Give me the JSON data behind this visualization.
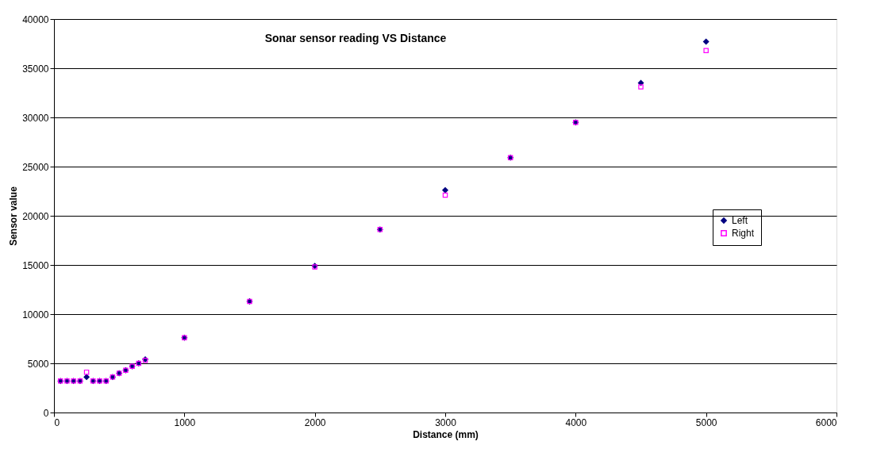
{
  "chart_data": {
    "type": "scatter",
    "title": "Sonar sensor reading VS Distance",
    "xlabel": "Distance (mm)",
    "ylabel": "Sensor value",
    "x": [
      50,
      100,
      150,
      200,
      250,
      300,
      350,
      400,
      450,
      500,
      550,
      600,
      650,
      700,
      1000,
      1500,
      2000,
      2500,
      3000,
      3500,
      4000,
      4500,
      5000
    ],
    "series": [
      {
        "name": "Left",
        "color": "#000080",
        "marker": "diamond",
        "values": [
          3200,
          3200,
          3200,
          3200,
          3600,
          3200,
          3200,
          3200,
          3600,
          4000,
          4300,
          4700,
          5000,
          5400,
          7600,
          11300,
          14900,
          18600,
          22600,
          25900,
          29500,
          33500,
          37700
        ]
      },
      {
        "name": "Right",
        "color": "#ff00ff",
        "marker": "square",
        "values": [
          3200,
          3200,
          3200,
          3200,
          4100,
          3200,
          3200,
          3200,
          3600,
          4000,
          4300,
          4700,
          5000,
          5300,
          7600,
          11300,
          14800,
          18600,
          22100,
          25900,
          29500,
          33100,
          36800
        ]
      }
    ],
    "xlim": [
      0,
      6000
    ],
    "xticks": [
      0,
      {
        "value": 1000,
        "label": "1000"
      },
      {
        "value": 2000,
        "label": "2000"
      },
      {
        "value": 3000,
        "label": "3000"
      },
      {
        "value": 4000,
        "label": "4000"
      },
      {
        "value": 5000,
        "label": "5000"
      },
      {
        "value": 6000,
        "label": "6000"
      }
    ],
    "ylim": [
      0,
      40000
    ],
    "yticks": [
      0,
      {
        "value": 5000,
        "label": "5000"
      },
      {
        "value": 10000,
        "label": "10000"
      },
      {
        "value": 15000,
        "label": "15000"
      },
      {
        "value": 20000,
        "label": "20000"
      },
      {
        "value": 25000,
        "label": "25000"
      },
      {
        "value": 30000,
        "label": "30000"
      },
      {
        "value": 35000,
        "label": "35000"
      },
      {
        "value": 40000,
        "label": "40000"
      }
    ],
    "grid": "y",
    "legend": "right"
  }
}
